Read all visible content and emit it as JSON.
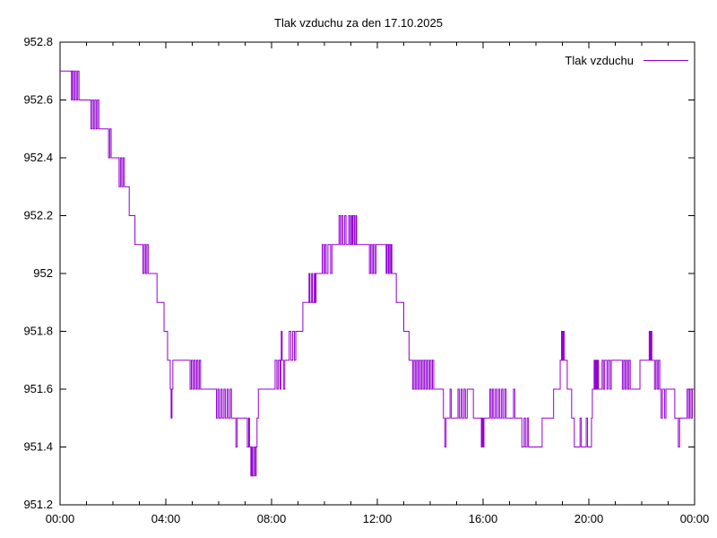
{
  "window": {
    "background_color": "#ffffff"
  },
  "chart_data": {
    "type": "line",
    "style": "steps",
    "title": "Tlak vzduchu za den 17.10.2025",
    "xlabel": "",
    "ylabel": "",
    "grid": false,
    "legend": {
      "label": "Tlak vzduchu",
      "position": "top-right"
    },
    "line_color": "#9400d3",
    "axis_color": "#000000",
    "x_axis": {
      "unit": "time-of-day",
      "range_minutes": [
        0,
        1440
      ],
      "major_tick_minutes": [
        0,
        240,
        480,
        720,
        960,
        1200,
        1440
      ],
      "major_tick_labels": [
        "00:00",
        "04:00",
        "08:00",
        "12:00",
        "16:00",
        "20:00",
        "00:00"
      ],
      "minor_tick_interval_minutes": 60
    },
    "y_axis": {
      "unit": "hPa",
      "range": [
        951.2,
        952.8
      ],
      "tick_values": [
        951.2,
        951.4,
        951.6,
        951.8,
        952,
        952.2,
        952.4,
        952.6,
        952.8
      ],
      "tick_labels": [
        "951.2",
        "951.4",
        "951.6",
        "951.8",
        "952",
        "952.2",
        "952.4",
        "952.6",
        "952.8"
      ]
    },
    "series": [
      {
        "name": "Tlak vzduchu",
        "points_minutes_hpa": [
          [
            0,
            952.7
          ],
          [
            26,
            952.6
          ],
          [
            28,
            952.7
          ],
          [
            31,
            952.6
          ],
          [
            34,
            952.7
          ],
          [
            37,
            952.6
          ],
          [
            40,
            952.7
          ],
          [
            43,
            952.6
          ],
          [
            70,
            952.5
          ],
          [
            73,
            952.6
          ],
          [
            76,
            952.5
          ],
          [
            79,
            952.6
          ],
          [
            82,
            952.5
          ],
          [
            85,
            952.6
          ],
          [
            88,
            952.5
          ],
          [
            110,
            952.4
          ],
          [
            113,
            952.5
          ],
          [
            116,
            952.4
          ],
          [
            134,
            952.3
          ],
          [
            137,
            952.4
          ],
          [
            140,
            952.3
          ],
          [
            143,
            952.4
          ],
          [
            146,
            952.3
          ],
          [
            157,
            952.2
          ],
          [
            170,
            952.1
          ],
          [
            188,
            952.0
          ],
          [
            191,
            952.1
          ],
          [
            194,
            952.0
          ],
          [
            197,
            952.1
          ],
          [
            200,
            952.0
          ],
          [
            220,
            951.9
          ],
          [
            236,
            951.8
          ],
          [
            244,
            951.7
          ],
          [
            250,
            951.6
          ],
          [
            252,
            951.5
          ],
          [
            254,
            951.6
          ],
          [
            256,
            951.7
          ],
          [
            295,
            951.6
          ],
          [
            298,
            951.7
          ],
          [
            301,
            951.6
          ],
          [
            304,
            951.7
          ],
          [
            307,
            951.6
          ],
          [
            310,
            951.7
          ],
          [
            313,
            951.6
          ],
          [
            316,
            951.7
          ],
          [
            319,
            951.6
          ],
          [
            355,
            951.5
          ],
          [
            358,
            951.6
          ],
          [
            361,
            951.5
          ],
          [
            365,
            951.6
          ],
          [
            368,
            951.5
          ],
          [
            372,
            951.6
          ],
          [
            375,
            951.5
          ],
          [
            379,
            951.6
          ],
          [
            382,
            951.5
          ],
          [
            386,
            951.6
          ],
          [
            389,
            951.5
          ],
          [
            399,
            951.4
          ],
          [
            402,
            951.5
          ],
          [
            425,
            951.4
          ],
          [
            428,
            951.5
          ],
          [
            430,
            951.4
          ],
          [
            433,
            951.3
          ],
          [
            435,
            951.4
          ],
          [
            437,
            951.3
          ],
          [
            440,
            951.4
          ],
          [
            443,
            951.3
          ],
          [
            445,
            951.4
          ],
          [
            447,
            951.5
          ],
          [
            450,
            951.6
          ],
          [
            488,
            951.7
          ],
          [
            492,
            951.6
          ],
          [
            495,
            951.7
          ],
          [
            499,
            951.6
          ],
          [
            501,
            951.7
          ],
          [
            502,
            951.8
          ],
          [
            504,
            951.7
          ],
          [
            507,
            951.6
          ],
          [
            510,
            951.7
          ],
          [
            520,
            951.8
          ],
          [
            524,
            951.7
          ],
          [
            528,
            951.8
          ],
          [
            532,
            951.7
          ],
          [
            535,
            951.8
          ],
          [
            551,
            951.9
          ],
          [
            565,
            952.0
          ],
          [
            567,
            951.9
          ],
          [
            571,
            952.0
          ],
          [
            573,
            951.9
          ],
          [
            577,
            952.0
          ],
          [
            579,
            951.9
          ],
          [
            581,
            952.0
          ],
          [
            595,
            952.1
          ],
          [
            598,
            952.0
          ],
          [
            601,
            952.1
          ],
          [
            604,
            952.0
          ],
          [
            608,
            952.1
          ],
          [
            614,
            952.0
          ],
          [
            617,
            952.1
          ],
          [
            633,
            952.2
          ],
          [
            636,
            952.1
          ],
          [
            639,
            952.2
          ],
          [
            642,
            952.1
          ],
          [
            646,
            952.2
          ],
          [
            649,
            952.1
          ],
          [
            655,
            952.2
          ],
          [
            658,
            952.1
          ],
          [
            661,
            952.2
          ],
          [
            663,
            952.1
          ],
          [
            665,
            952.2
          ],
          [
            668,
            952.1
          ],
          [
            671,
            952.2
          ],
          [
            673,
            952.1
          ],
          [
            702,
            952.0
          ],
          [
            705,
            952.1
          ],
          [
            708,
            952.0
          ],
          [
            711,
            952.1
          ],
          [
            714,
            952.0
          ],
          [
            717,
            952.1
          ],
          [
            740,
            952.0
          ],
          [
            742,
            952.1
          ],
          [
            745,
            952.0
          ],
          [
            747,
            952.1
          ],
          [
            750,
            952.0
          ],
          [
            752,
            952.1
          ],
          [
            753,
            952.0
          ],
          [
            763,
            951.9
          ],
          [
            780,
            951.8
          ],
          [
            792,
            951.7
          ],
          [
            800,
            951.6
          ],
          [
            803,
            951.7
          ],
          [
            806,
            951.6
          ],
          [
            809,
            951.7
          ],
          [
            812,
            951.6
          ],
          [
            815,
            951.7
          ],
          [
            818,
            951.6
          ],
          [
            821,
            951.7
          ],
          [
            824,
            951.6
          ],
          [
            827,
            951.7
          ],
          [
            830,
            951.6
          ],
          [
            833,
            951.7
          ],
          [
            836,
            951.6
          ],
          [
            839,
            951.7
          ],
          [
            842,
            951.6
          ],
          [
            845,
            951.7
          ],
          [
            848,
            951.6
          ],
          [
            870,
            951.5
          ],
          [
            873,
            951.4
          ],
          [
            876,
            951.5
          ],
          [
            885,
            951.6
          ],
          [
            888,
            951.5
          ],
          [
            903,
            951.6
          ],
          [
            906,
            951.5
          ],
          [
            910,
            951.6
          ],
          [
            913,
            951.5
          ],
          [
            917,
            951.6
          ],
          [
            920,
            951.5
          ],
          [
            924,
            951.6
          ],
          [
            938,
            951.5
          ],
          [
            956,
            951.4
          ],
          [
            958,
            951.5
          ],
          [
            960,
            951.4
          ],
          [
            962,
            951.5
          ],
          [
            975,
            951.6
          ],
          [
            978,
            951.5
          ],
          [
            981,
            951.6
          ],
          [
            984,
            951.5
          ],
          [
            988,
            951.6
          ],
          [
            991,
            951.5
          ],
          [
            995,
            951.6
          ],
          [
            998,
            951.5
          ],
          [
            1002,
            951.6
          ],
          [
            1005,
            951.5
          ],
          [
            1009,
            951.6
          ],
          [
            1012,
            951.5
          ],
          [
            1029,
            951.6
          ],
          [
            1032,
            951.5
          ],
          [
            1048,
            951.4
          ],
          [
            1053,
            951.5
          ],
          [
            1056,
            951.4
          ],
          [
            1060,
            951.5
          ],
          [
            1063,
            951.4
          ],
          [
            1094,
            951.5
          ],
          [
            1120,
            951.6
          ],
          [
            1135,
            951.7
          ],
          [
            1138,
            951.8
          ],
          [
            1140,
            951.7
          ],
          [
            1142,
            951.8
          ],
          [
            1144,
            951.7
          ],
          [
            1151,
            951.6
          ],
          [
            1161,
            951.5
          ],
          [
            1167,
            951.4
          ],
          [
            1180,
            951.5
          ],
          [
            1183,
            951.4
          ],
          [
            1194,
            951.5
          ],
          [
            1197,
            951.4
          ],
          [
            1206,
            951.5
          ],
          [
            1208,
            951.6
          ],
          [
            1212,
            951.7
          ],
          [
            1214,
            951.6
          ],
          [
            1216,
            951.7
          ],
          [
            1218,
            951.6
          ],
          [
            1220,
            951.7
          ],
          [
            1222,
            951.6
          ],
          [
            1230,
            951.7
          ],
          [
            1233,
            951.6
          ],
          [
            1236,
            951.7
          ],
          [
            1241,
            951.6
          ],
          [
            1244,
            951.7
          ],
          [
            1248,
            951.6
          ],
          [
            1251,
            951.7
          ],
          [
            1276,
            951.6
          ],
          [
            1279,
            951.7
          ],
          [
            1282,
            951.6
          ],
          [
            1285,
            951.7
          ],
          [
            1288,
            951.6
          ],
          [
            1291,
            951.7
          ],
          [
            1294,
            951.6
          ],
          [
            1316,
            951.7
          ],
          [
            1337,
            951.8
          ],
          [
            1339,
            951.7
          ],
          [
            1341,
            951.8
          ],
          [
            1343,
            951.7
          ],
          [
            1349,
            951.6
          ],
          [
            1352,
            951.7
          ],
          [
            1355,
            951.6
          ],
          [
            1358,
            951.7
          ],
          [
            1361,
            951.6
          ],
          [
            1364,
            951.5
          ],
          [
            1367,
            951.6
          ],
          [
            1372,
            951.5
          ],
          [
            1375,
            951.6
          ],
          [
            1395,
            951.5
          ],
          [
            1403,
            951.4
          ],
          [
            1406,
            951.5
          ],
          [
            1423,
            951.6
          ],
          [
            1426,
            951.5
          ],
          [
            1429,
            951.6
          ],
          [
            1432,
            951.5
          ],
          [
            1435,
            951.6
          ],
          [
            1440,
            951.6
          ]
        ]
      }
    ]
  }
}
